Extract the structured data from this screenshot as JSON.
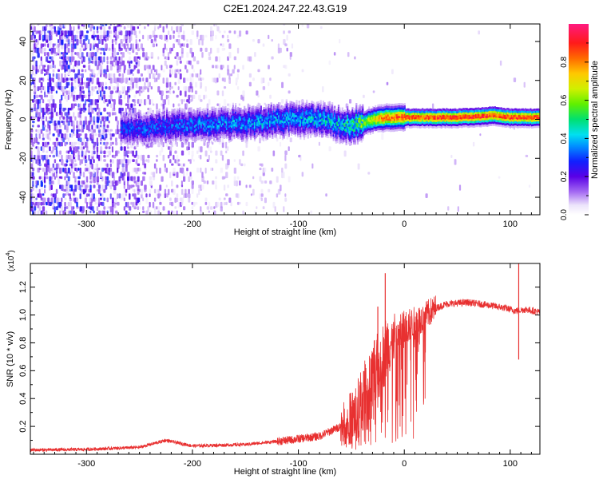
{
  "title": "C2E1.2024.247.22.43.G19",
  "colors": {
    "snr_line": "#e83030",
    "spectrum_colormap": [
      "#ffffff",
      "#d8c8f4",
      "#9a55f0",
      "#6a00e8",
      "#1a10ff",
      "#00d8ff",
      "#30e060",
      "#a0f000",
      "#ffd000",
      "#ff6a00",
      "#ff1a1a",
      "#ff1a80"
    ]
  },
  "chart_data": [
    {
      "type": "heatmap",
      "subtype": "spectrogram",
      "xlabel": "Height of straight line (km)",
      "ylabel": "Frequency (Hz)",
      "xlim": [
        -353,
        128
      ],
      "ylim": [
        -49,
        49
      ],
      "xticks": [
        -300,
        -200,
        -100,
        0,
        100
      ],
      "yticks": [
        -40,
        -20,
        0,
        20,
        40
      ],
      "grid": false,
      "colorbar": {
        "label": "Normalized spectral amplitude",
        "range": [
          0.0,
          1.0
        ],
        "ticks": [
          0.0,
          0.2,
          0.4,
          0.6,
          0.8
        ]
      },
      "ridge": {
        "description_points": [
          [
            -265,
            -5
          ],
          [
            -240,
            -4
          ],
          [
            -200,
            -3
          ],
          [
            -150,
            -2
          ],
          [
            -110,
            0
          ],
          [
            -80,
            0
          ],
          [
            -55,
            -3
          ],
          [
            -40,
            -2
          ],
          [
            -30,
            0
          ],
          [
            -15,
            1
          ],
          [
            0,
            1
          ],
          [
            50,
            1
          ],
          [
            85,
            2
          ],
          [
            100,
            1
          ],
          [
            128,
            1
          ]
        ],
        "amplitude_points": [
          [
            -265,
            0.3
          ],
          [
            -200,
            0.35
          ],
          [
            -120,
            0.4
          ],
          [
            -60,
            0.45
          ],
          [
            -40,
            0.6
          ],
          [
            -20,
            0.85
          ],
          [
            0,
            0.9
          ],
          [
            50,
            0.95
          ],
          [
            128,
            0.9
          ]
        ]
      }
    },
    {
      "type": "line",
      "xlabel": "Height of straight line (km)",
      "ylabel": "SNR (10 * v/v)",
      "scale_label": "(x10",
      "scale_exponent": "4",
      "xlim": [
        -353,
        128
      ],
      "ylim": [
        0,
        1.37
      ],
      "xticks": [
        -300,
        -200,
        -100,
        0,
        100
      ],
      "yticks": [
        0.2,
        0.4,
        0.6,
        0.8,
        1.0,
        1.2
      ],
      "grid": false,
      "series": [
        {
          "envelope_points": [
            [
              -353,
              0.03
            ],
            [
              -300,
              0.035
            ],
            [
              -250,
              0.05
            ],
            [
              -225,
              0.1
            ],
            [
              -200,
              0.06
            ],
            [
              -150,
              0.07
            ],
            [
              -110,
              0.1
            ],
            [
              -80,
              0.13
            ],
            [
              -60,
              0.2
            ],
            [
              -45,
              0.3
            ],
            [
              -35,
              0.45
            ],
            [
              -25,
              0.6
            ],
            [
              -18,
              0.75
            ],
            [
              -10,
              0.82
            ],
            [
              0,
              0.9
            ],
            [
              15,
              0.97
            ],
            [
              30,
              1.05
            ],
            [
              40,
              1.08
            ],
            [
              60,
              1.09
            ],
            [
              80,
              1.07
            ],
            [
              95,
              1.05
            ],
            [
              105,
              1.03
            ],
            [
              115,
              1.04
            ],
            [
              128,
              1.02
            ]
          ],
          "spikes": [
            [
              -25,
              1.06
            ],
            [
              -18,
              1.3
            ],
            [
              -5,
              0.9
            ],
            [
              108,
              1.37
            ],
            [
              108,
              0.68
            ]
          ]
        }
      ]
    }
  ]
}
